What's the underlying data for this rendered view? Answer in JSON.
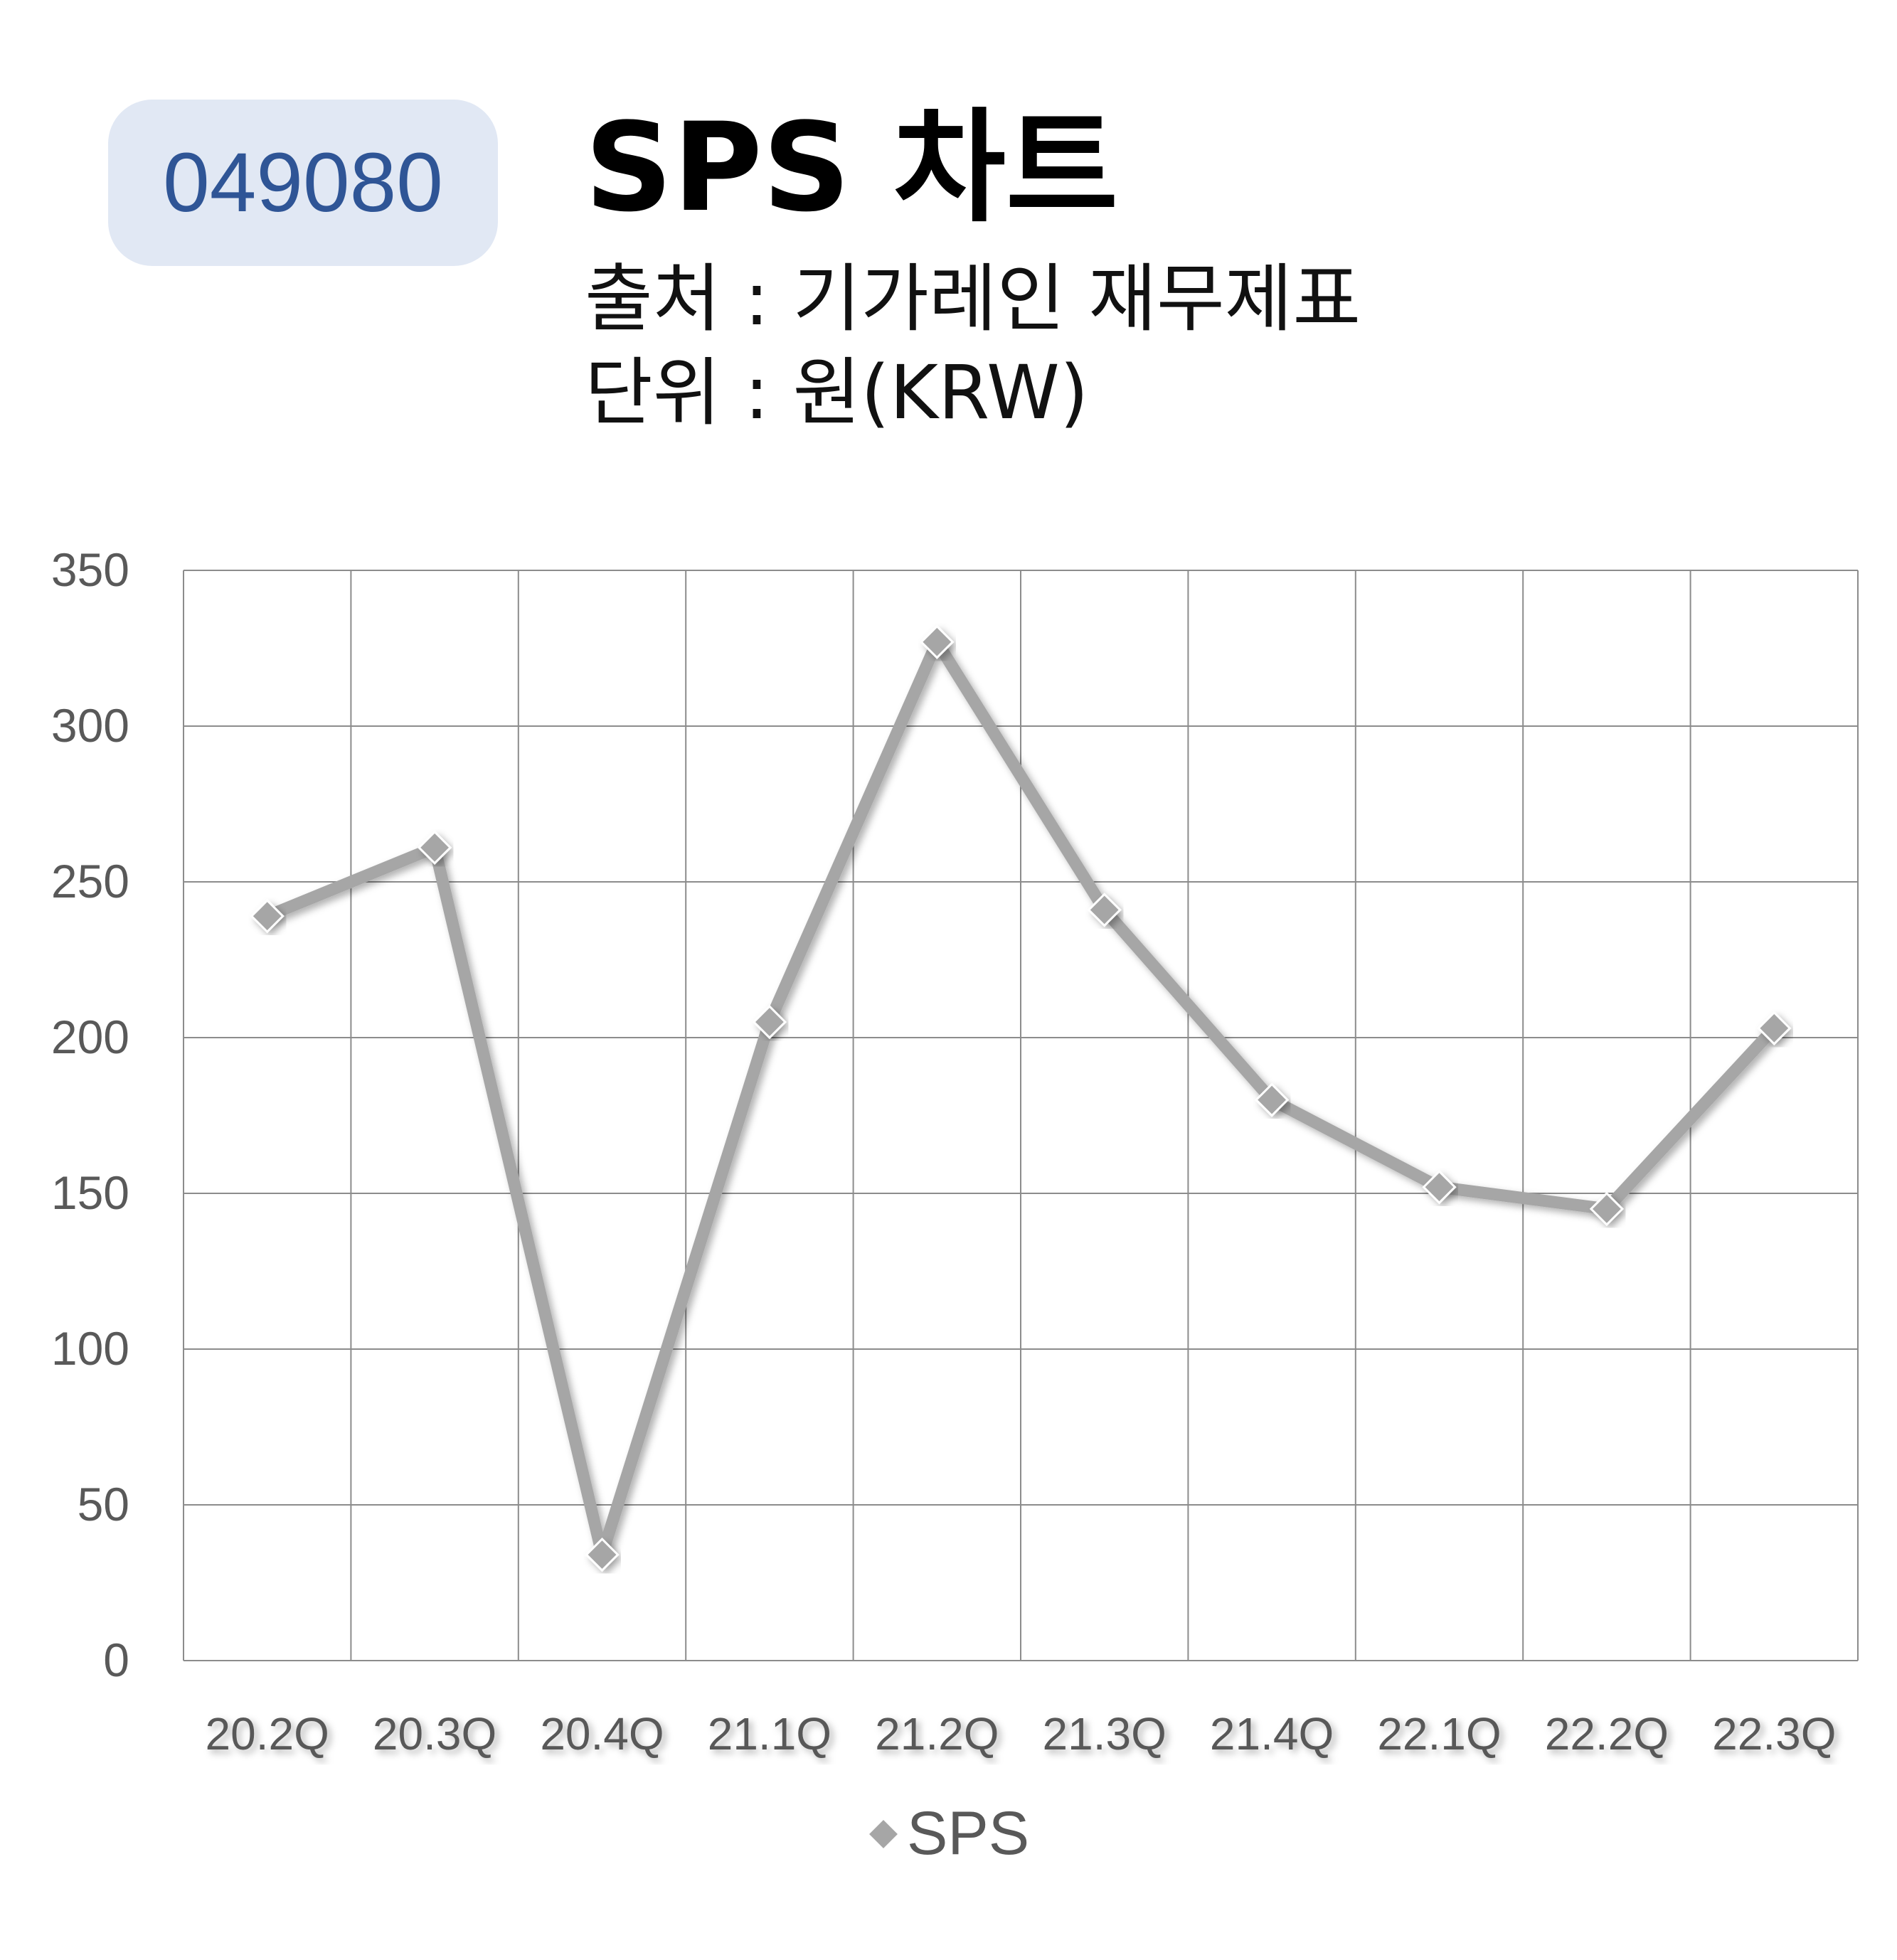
{
  "header": {
    "stock_code": "049080",
    "title": "SPS 차트",
    "source": "출처 : 기가레인 재무제표",
    "unit": "단위 : 원(KRW)"
  },
  "colors": {
    "badge_bg": "#e1e8f4",
    "badge_text": "#2f5596",
    "series_line": "#a6a6a6",
    "marker": "#a6a6a6",
    "grid": "#8c8c8c",
    "axis_text": "#595959"
  },
  "chart_data": {
    "type": "line",
    "categories": [
      "20.2Q",
      "20.3Q",
      "20.4Q",
      "21.1Q",
      "21.2Q",
      "21.3Q",
      "21.4Q",
      "22.1Q",
      "22.2Q",
      "22.3Q"
    ],
    "series": [
      {
        "name": "SPS",
        "values": [
          239,
          261,
          34,
          205,
          327,
          241,
          180,
          152,
          145,
          203
        ],
        "marker": "diamond"
      }
    ],
    "yticks": [
      0,
      50,
      100,
      150,
      200,
      250,
      300,
      350
    ],
    "ylim": [
      0,
      350
    ],
    "grid": true,
    "legend": "bottom"
  }
}
